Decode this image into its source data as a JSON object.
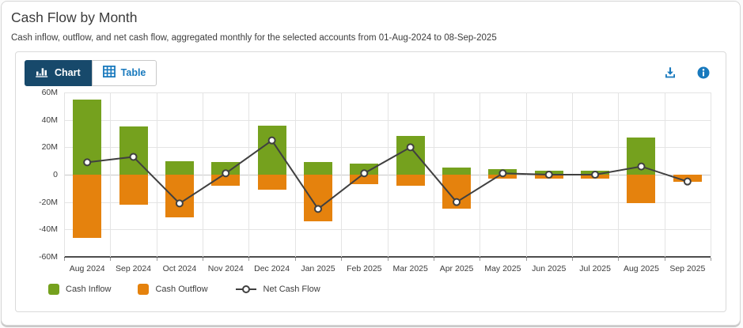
{
  "header": {
    "title": "Cash Flow by Month",
    "subtitle": "Cash inflow, outflow, and net cash flow, aggregated monthly for the selected accounts from 01-Aug-2024 to 08-Sep-2025"
  },
  "toolbar": {
    "chart_tab": "Chart",
    "table_tab": "Table",
    "icons": [
      "bar-chart-icon",
      "table-grid-icon",
      "download-icon",
      "info-icon"
    ]
  },
  "legend": {
    "inflow": "Cash Inflow",
    "outflow": "Cash Outflow",
    "net": "Net Cash Flow"
  },
  "colors": {
    "inflow_green": "#75a11e",
    "outflow_orange": "#e5820d",
    "net_line": "#404040",
    "active_tab_navy": "#17496b",
    "accent_blue": "#1879bd"
  },
  "chart_data": {
    "type": "bar",
    "subtype": "diverging-bars-with-net-line",
    "title": "Cash Flow by Month",
    "values_unit": "millions",
    "categories": [
      "Aug 2024",
      "Sep 2024",
      "Oct 2024",
      "Nov 2024",
      "Dec 2024",
      "Jan 2025",
      "Feb 2025",
      "Mar 2025",
      "Apr 2025",
      "May 2025",
      "Jun 2025",
      "Jul 2025",
      "Aug 2025",
      "Sep 2025"
    ],
    "series": [
      {
        "name": "Cash Inflow",
        "type": "bar",
        "color": "#75a11e",
        "values": [
          55,
          35,
          10,
          9,
          36,
          9,
          8,
          28,
          5,
          4,
          3,
          3,
          27,
          0
        ]
      },
      {
        "name": "Cash Outflow",
        "type": "bar",
        "color": "#e5820d",
        "values": [
          -46,
          -22,
          -31,
          -8,
          -11,
          -34,
          -7,
          -8,
          -25,
          -3,
          -3,
          -3,
          -21,
          -5
        ]
      },
      {
        "name": "Net Cash Flow",
        "type": "line",
        "color": "#404040",
        "marker": "circle-white",
        "values": [
          9,
          13,
          -21,
          1,
          25,
          -25,
          1,
          20,
          -20,
          1,
          0,
          0,
          6,
          -5
        ]
      }
    ],
    "xlabel": "",
    "ylabel": "",
    "ylim": [
      -60,
      60
    ],
    "ytick_step": 20,
    "ytick_labels": [
      "60M",
      "40M",
      "20M",
      "0",
      "-20M",
      "-40M",
      "-60M"
    ],
    "grid": true,
    "legend_position": "bottom-left"
  }
}
